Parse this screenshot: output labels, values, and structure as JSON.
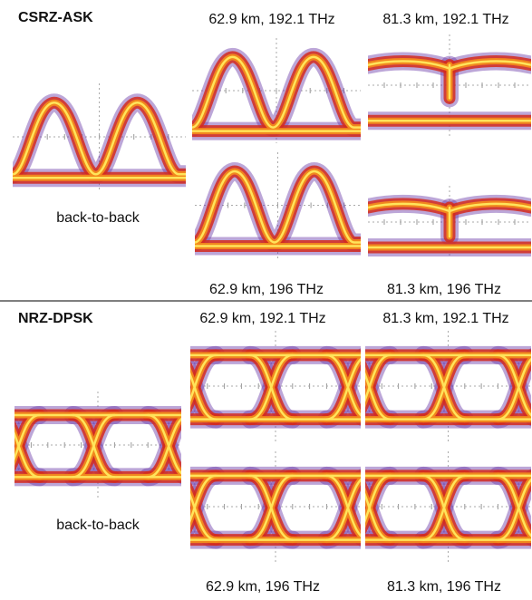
{
  "sections": [
    {
      "title": "CSRZ-ASK",
      "reference_label": "back-to-back",
      "panel_labels": [
        "62.9 km, 192.1 THz",
        "81.3 km, 192.1 THz",
        "62.9 km, 196 THz",
        "81.3 km, 196 THz"
      ]
    },
    {
      "title": "NRZ-DPSK",
      "reference_label": "back-to-back",
      "panel_labels": [
        "62.9 km, 192.1 THz",
        "81.3 km, 192.1 THz",
        "62.9 km, 196 THz",
        "81.3 km, 196 THz"
      ]
    }
  ]
}
